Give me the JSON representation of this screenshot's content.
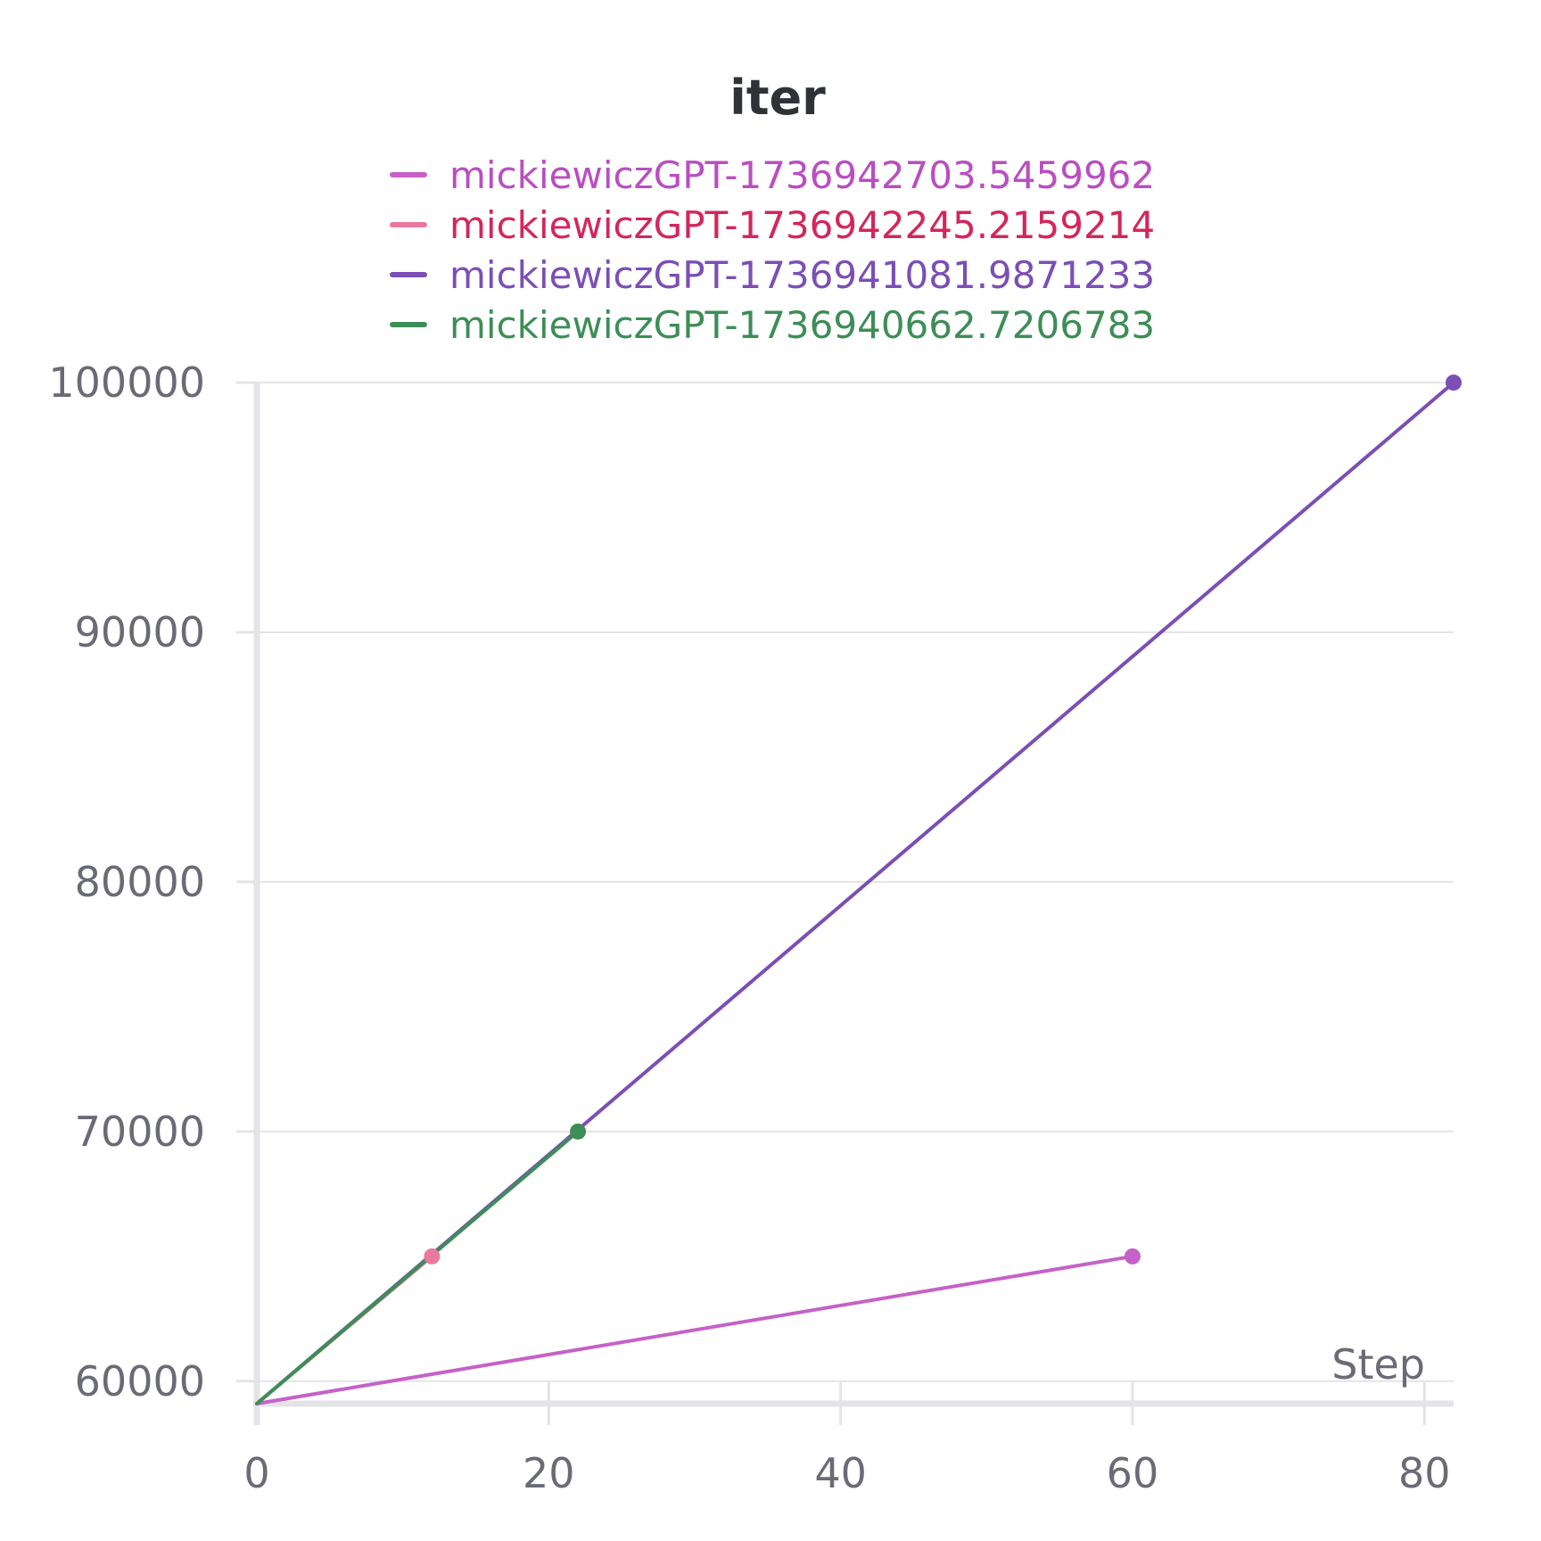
{
  "chart_data": {
    "type": "line",
    "title": "iter",
    "xlabel": "Step",
    "ylabel": "",
    "xlim": [
      0,
      82
    ],
    "ylim": [
      59100,
      100000
    ],
    "x_ticks": [
      "0",
      "20",
      "40",
      "60",
      "80"
    ],
    "y_ticks": [
      "60000",
      "70000",
      "80000",
      "90000",
      "100000"
    ],
    "x_tick_values": [
      0,
      20,
      40,
      60,
      80
    ],
    "y_tick_values": [
      60000,
      70000,
      80000,
      90000,
      100000
    ],
    "grid": true,
    "legend_position": "top",
    "series": [
      {
        "name": "mickiewiczGPT-1736942703.5459962",
        "color": "#c561c7",
        "label_color": "#b94ec1",
        "points": [
          [
            0,
            59100
          ],
          [
            60,
            65000
          ]
        ],
        "end_marker": true
      },
      {
        "name": "mickiewiczGPT-1736942245.2159214",
        "color": "#e8799f",
        "label_color": "#d4265b",
        "points": [
          [
            0,
            59100
          ],
          [
            12,
            65000
          ]
        ],
        "end_marker": true
      },
      {
        "name": "mickiewiczGPT-1736941081.9871233",
        "color": "#7b4fb5",
        "label_color": "#7b4fb5",
        "points": [
          [
            0,
            59100
          ],
          [
            82,
            100000
          ]
        ],
        "end_marker": true
      },
      {
        "name": "mickiewiczGPT-1736940662.7206783",
        "color": "#3d8d57",
        "label_color": "#3d8d57",
        "points": [
          [
            0,
            59100
          ],
          [
            22,
            70000
          ]
        ],
        "end_marker": true
      }
    ]
  }
}
